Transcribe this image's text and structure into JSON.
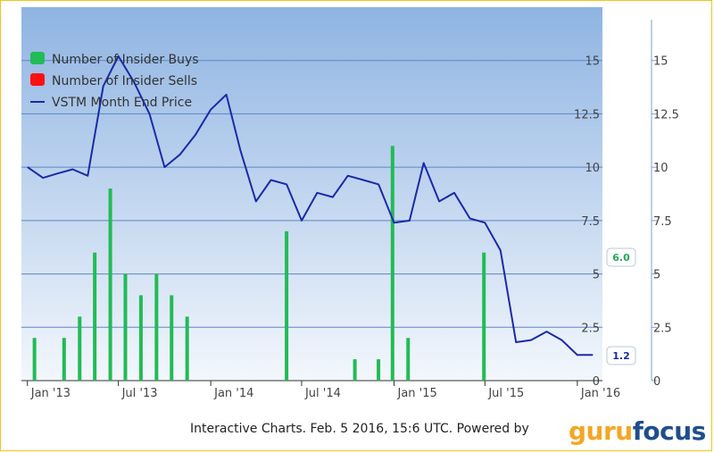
{
  "chart_data": {
    "type": "bar+line",
    "legend": {
      "placement": "top-left",
      "items": [
        {
          "label": "Number of Insider Buys",
          "color": "#22bb55",
          "marker": "square"
        },
        {
          "label": "Number of Insider Sells",
          "color": "#ff1111",
          "marker": "square"
        },
        {
          "label": "VSTM Month End Price",
          "color": "#1a2aa8",
          "marker": "line"
        }
      ]
    },
    "x_ticks": [
      "Jan '13",
      "Jul '13",
      "Jan '14",
      "Jul '14",
      "Jan '15",
      "Jul '15",
      "Jan '16"
    ],
    "y_ticks": [
      "0",
      "2.5",
      "5",
      "7.5",
      "10",
      "12.5",
      "15"
    ],
    "y_right_ticks": [
      "0",
      "2.5",
      "5",
      "7.5",
      "10",
      "12.5",
      "15"
    ],
    "ylim": [
      0,
      17.5
    ],
    "grid": true,
    "insider_buys": [
      {
        "date": "2013-01-15",
        "value": 2
      },
      {
        "date": "2013-03-15",
        "value": 2
      },
      {
        "date": "2013-04-15",
        "value": 3
      },
      {
        "date": "2013-05-15",
        "value": 6
      },
      {
        "date": "2013-06-15",
        "value": 9
      },
      {
        "date": "2013-07-15",
        "value": 5
      },
      {
        "date": "2013-08-15",
        "value": 4
      },
      {
        "date": "2013-09-15",
        "value": 5
      },
      {
        "date": "2013-10-15",
        "value": 4
      },
      {
        "date": "2013-11-15",
        "value": 3
      },
      {
        "date": "2014-06-01",
        "value": 7
      },
      {
        "date": "2014-10-15",
        "value": 1
      },
      {
        "date": "2014-12-01",
        "value": 1
      },
      {
        "date": "2014-12-29",
        "value": 11
      },
      {
        "date": "2015-01-29",
        "value": 2
      },
      {
        "date": "2015-06-29",
        "value": 6
      }
    ],
    "price": [
      {
        "date": "2013-01-01",
        "value": 10.0
      },
      {
        "date": "2013-02-01",
        "value": 9.5
      },
      {
        "date": "2013-03-01",
        "value": 9.7
      },
      {
        "date": "2013-04-01",
        "value": 9.9
      },
      {
        "date": "2013-05-01",
        "value": 9.6
      },
      {
        "date": "2013-06-01",
        "value": 13.8
      },
      {
        "date": "2013-07-01",
        "value": 15.2
      },
      {
        "date": "2013-08-01",
        "value": 14.0
      },
      {
        "date": "2013-09-01",
        "value": 12.5
      },
      {
        "date": "2013-10-01",
        "value": 10.0
      },
      {
        "date": "2013-11-01",
        "value": 10.6
      },
      {
        "date": "2013-12-01",
        "value": 11.5
      },
      {
        "date": "2014-01-01",
        "value": 12.7
      },
      {
        "date": "2014-02-01",
        "value": 13.4
      },
      {
        "date": "2014-03-01",
        "value": 10.8
      },
      {
        "date": "2014-04-01",
        "value": 8.4
      },
      {
        "date": "2014-05-01",
        "value": 9.4
      },
      {
        "date": "2014-06-01",
        "value": 9.2
      },
      {
        "date": "2014-07-01",
        "value": 7.5
      },
      {
        "date": "2014-08-01",
        "value": 8.8
      },
      {
        "date": "2014-09-01",
        "value": 8.6
      },
      {
        "date": "2014-10-01",
        "value": 9.6
      },
      {
        "date": "2014-11-01",
        "value": 9.4
      },
      {
        "date": "2014-12-01",
        "value": 9.2
      },
      {
        "date": "2015-01-01",
        "value": 7.4
      },
      {
        "date": "2015-02-01",
        "value": 7.5
      },
      {
        "date": "2015-03-01",
        "value": 10.2
      },
      {
        "date": "2015-04-01",
        "value": 8.4
      },
      {
        "date": "2015-05-01",
        "value": 8.8
      },
      {
        "date": "2015-06-01",
        "value": 7.6
      },
      {
        "date": "2015-07-01",
        "value": 7.4
      },
      {
        "date": "2015-08-01",
        "value": 6.1
      },
      {
        "date": "2015-09-01",
        "value": 1.8
      },
      {
        "date": "2015-10-01",
        "value": 1.9
      },
      {
        "date": "2015-11-01",
        "value": 2.3
      },
      {
        "date": "2015-12-01",
        "value": 1.9
      },
      {
        "date": "2016-01-01",
        "value": 1.2
      },
      {
        "date": "2016-02-01",
        "value": 1.2
      }
    ],
    "flags": [
      {
        "text": "6.0",
        "color": "#22aa55",
        "value": 6.0
      },
      {
        "text": "1.2",
        "color": "#1a2aa8",
        "value": 1.2
      }
    ]
  },
  "footer": {
    "text": "Interactive Charts. Feb. 5 2016, 15:6 UTC. Powered by",
    "logo_part1": "guru",
    "logo_part2": "focus"
  }
}
